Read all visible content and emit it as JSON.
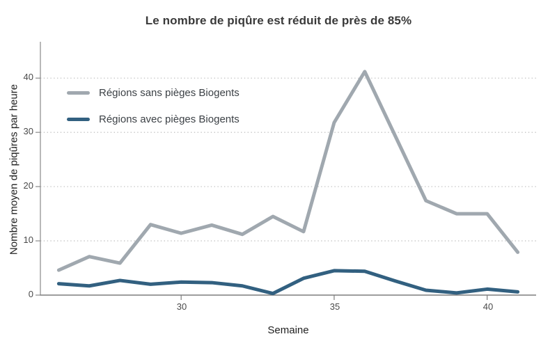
{
  "title": "Le nombre de piqûre est réduit de près de 85%",
  "chart_data": {
    "type": "line",
    "title": "Le nombre de piqûre est réduit de près de 85%",
    "xlabel": "Semaine",
    "ylabel": "Nombre moyen de piqûres par heure",
    "x": [
      26,
      27,
      28,
      29,
      30,
      31,
      32,
      33,
      34,
      35,
      36,
      37,
      38,
      39,
      40,
      41
    ],
    "series": [
      {
        "name": "Régions sans pièges Biogents",
        "color": "#a0a8af",
        "values": [
          4.6,
          7.1,
          5.9,
          13.0,
          11.4,
          12.9,
          11.2,
          14.5,
          11.7,
          31.8,
          41.2,
          29.3,
          17.4,
          15.0,
          15.0,
          7.9
        ]
      },
      {
        "name": "Régions avec pièges Biogents",
        "color": "#326080",
        "values": [
          2.1,
          1.7,
          2.7,
          2.0,
          2.4,
          2.3,
          1.7,
          0.3,
          3.1,
          4.5,
          4.4,
          2.6,
          0.9,
          0.4,
          1.1,
          0.6
        ]
      }
    ],
    "xlim": [
      25.4,
      41.6
    ],
    "ylim": [
      0,
      46.7
    ],
    "yticks": [
      {
        "value": 0,
        "label": "0"
      },
      {
        "value": 10,
        "label": "10"
      },
      {
        "value": 20,
        "label": "20"
      },
      {
        "value": 30,
        "label": "30"
      },
      {
        "value": 40,
        "label": "40"
      }
    ],
    "xticks": [
      {
        "value": 30,
        "label": "30"
      },
      {
        "value": 35,
        "label": "35"
      },
      {
        "value": 40,
        "label": "40"
      }
    ],
    "grid": "horizontal-dotted",
    "grid_color": "#c3c3c3",
    "axis_color": "#8a8a8a",
    "legend_position": "top-left-inside"
  }
}
